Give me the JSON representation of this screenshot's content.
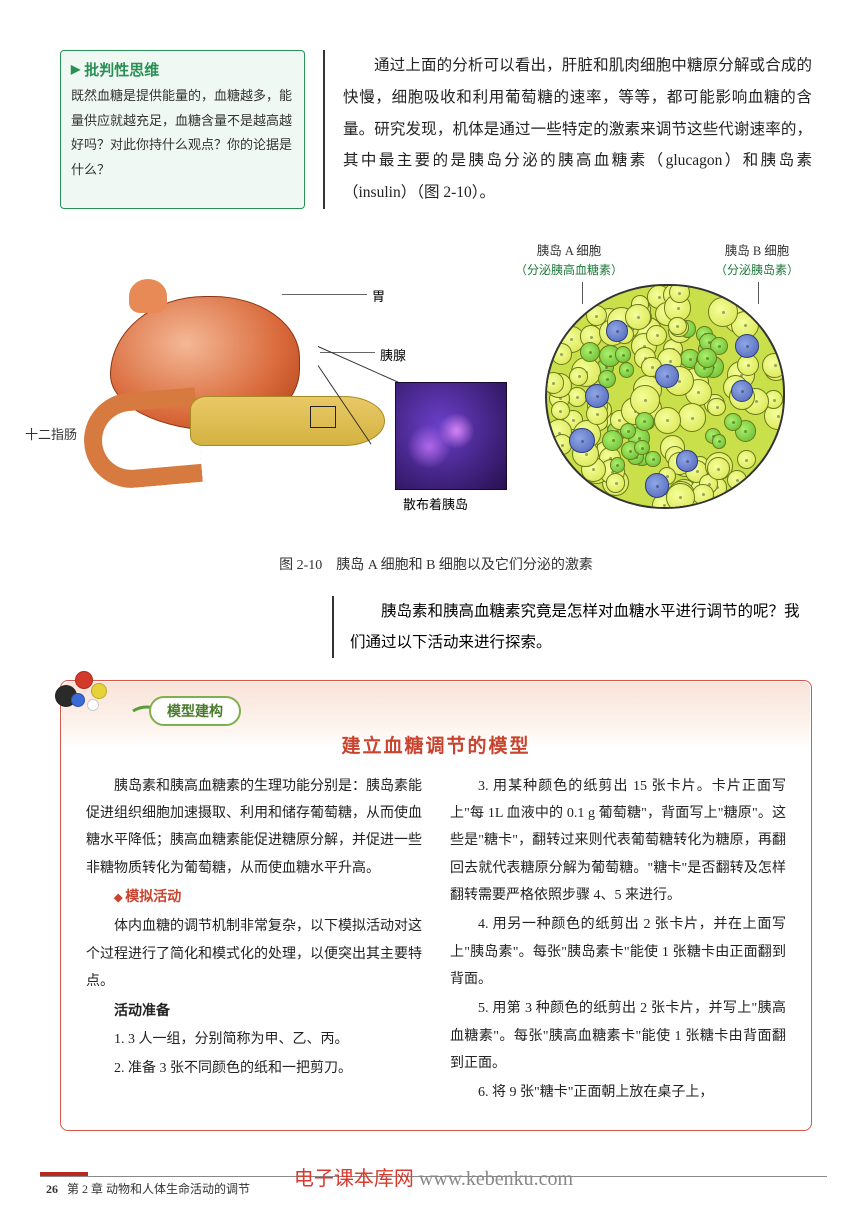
{
  "critical": {
    "title": "批判性思维",
    "body": "既然血糖是提供能量的，血糖越多，能量供应就越充足，血糖含量不是越高越好吗？对此你持什么观点？你的论据是什么？",
    "title_color": "#2a9156",
    "border_color": "#2a9156",
    "bg_color": "#f0f8f3"
  },
  "intro": "通过上面的分析可以看出，肝脏和肌肉细胞中糖原分解或合成的快慢，细胞吸收和利用葡萄糖的速率，等等，都可能影响血糖的含量。研究发现，机体是通过一些特定的激素来调节这些代谢速率的，其中最主要的是胰岛分泌的胰高血糖素（glucagon）和胰岛素（insulin）（图 2-10）。",
  "figure": {
    "labels": {
      "cell_a_title": "胰岛 A 细胞",
      "cell_a_sub": "（分泌胰高血糖素）",
      "cell_b_title": "胰岛 B 细胞",
      "cell_b_sub": "（分泌胰岛素）",
      "stomach": "胃",
      "pancreas": "胰腺",
      "duodenum": "十二指肠",
      "islets": "散布着胰岛"
    },
    "caption": "图 2-10　胰岛 A 细胞和 B 细胞以及它们分泌的激素",
    "colors": {
      "stomach": "#d9693a",
      "pancreas": "#d4b241",
      "cell_a": "#5fb82e",
      "cell_b": "#4d63b8",
      "cell_other": "#d7e24a",
      "micro_bg": "#271050"
    }
  },
  "question": "胰岛素和胰高血糖素究竟是怎样对血糖水平进行调节的呢？我们通过以下活动来进行探索。",
  "model": {
    "tag": "模型建构",
    "title": "建立血糖调节的模型",
    "tag_border": "#7fb04e",
    "tag_text_color": "#4a7a2c",
    "border_color": "#d9564b",
    "title_color": "#c8442f",
    "left": {
      "p1": "胰岛素和胰高血糖素的生理功能分别是：胰岛素能促进组织细胞加速摄取、利用和储存葡萄糖，从而使血糖水平降低；胰高血糖素能促进糖原分解，并促进一些非糖物质转化为葡萄糖，从而使血糖水平升高。",
      "sim_heading": "模拟活动",
      "p2": "体内血糖的调节机制非常复杂，以下模拟活动对这个过程进行了简化和模式化的处理，以便突出其主要特点。",
      "prep_heading": "活动准备",
      "item1": "1. 3 人一组，分别简称为甲、乙、丙。",
      "item2": "2. 准备 3 张不同颜色的纸和一把剪刀。"
    },
    "right": {
      "item3": "3. 用某种颜色的纸剪出 15 张卡片。卡片正面写上\"每 1L 血液中的 0.1 g 葡萄糖\"，背面写上\"糖原\"。这些是\"糖卡\"，翻转过来则代表葡萄糖转化为糖原，再翻回去就代表糖原分解为葡萄糖。\"糖卡\"是否翻转及怎样翻转需要严格依照步骤 4、5 来进行。",
      "item4": "4. 用另一种颜色的纸剪出 2 张卡片，并在上面写上\"胰岛素\"。每张\"胰岛素卡\"能使 1 张糖卡由正面翻到背面。",
      "item5": "5. 用第 3 种颜色的纸剪出 2 张卡片，并写上\"胰高血糖素\"。每张\"胰高血糖素卡\"能使 1 张糖卡由背面翻到正面。",
      "item6": "6. 将 9 张\"糖卡\"正面朝上放在桌子上，"
    }
  },
  "footer": {
    "page_num": "26",
    "chapter": "第 2 章 动物和人体生命活动的调节",
    "bar_color": "#b8291f",
    "watermark_red": "电子课本库网",
    "watermark_url": "www.kebenku.com"
  }
}
